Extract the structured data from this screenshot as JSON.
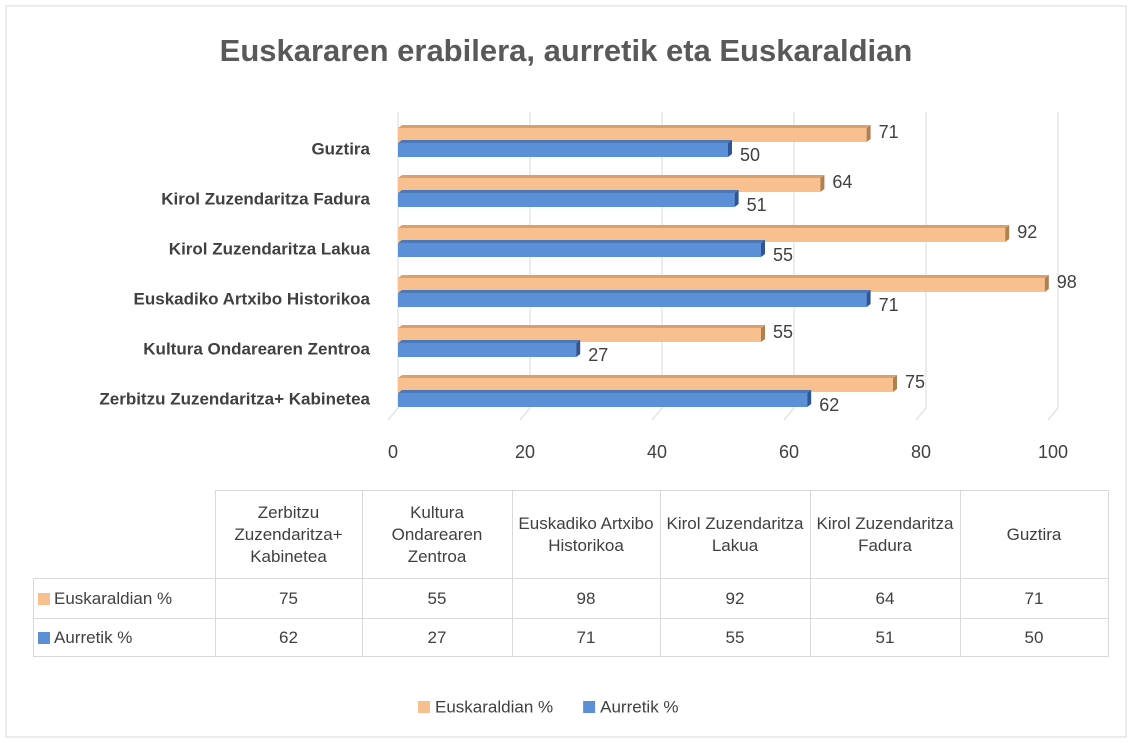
{
  "chart_data": {
    "type": "bar",
    "orientation": "horizontal",
    "title": "Euskararen erabilera, aurretik eta Euskaraldian",
    "categories": [
      "Zerbitzu Zuzendaritza+ Kabinetea",
      "Kultura Ondarearen Zentroa",
      "Euskadiko Artxibo Historikoa",
      "Kirol Zuzendaritza Lakua",
      "Kirol Zuzendaritza Fadura",
      "Guztira"
    ],
    "series": [
      {
        "name": "Euskaraldian %",
        "color": "#f8c08e",
        "values": [
          75,
          55,
          98,
          92,
          64,
          71
        ]
      },
      {
        "name": "Aurretik %",
        "color": "#5b8fd6",
        "values": [
          62,
          27,
          71,
          55,
          51,
          50
        ]
      }
    ],
    "xlim": [
      0,
      100
    ],
    "xticks": [
      0,
      20,
      40,
      60,
      80,
      100
    ],
    "grid": true,
    "legend": "bottom"
  }
}
